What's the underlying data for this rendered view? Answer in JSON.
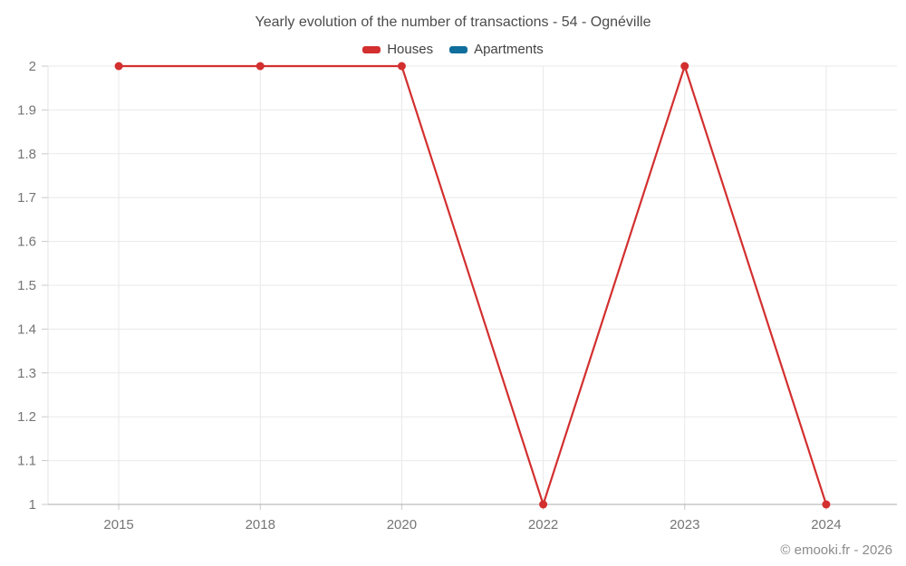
{
  "footer": "© emooki.fr - 2026",
  "chart_data": {
    "type": "line",
    "title": "Yearly evolution of the number of transactions - 54 - Ognéville",
    "categories": [
      "2015",
      "2018",
      "2020",
      "2022",
      "2023",
      "2024"
    ],
    "series": [
      {
        "name": "Houses",
        "color": "#d32f2f",
        "values": [
          2,
          2,
          2,
          1,
          2,
          1
        ]
      },
      {
        "name": "Apartments",
        "color": "#0f6e9c",
        "values": []
      }
    ],
    "xlabel": "",
    "ylabel": "",
    "ylim": [
      1,
      2
    ],
    "yticks": [
      "1",
      "1.1",
      "1.2",
      "1.3",
      "1.4",
      "1.5",
      "1.6",
      "1.7",
      "1.8",
      "1.9",
      "2"
    ],
    "grid": true,
    "legend_position": "top"
  }
}
